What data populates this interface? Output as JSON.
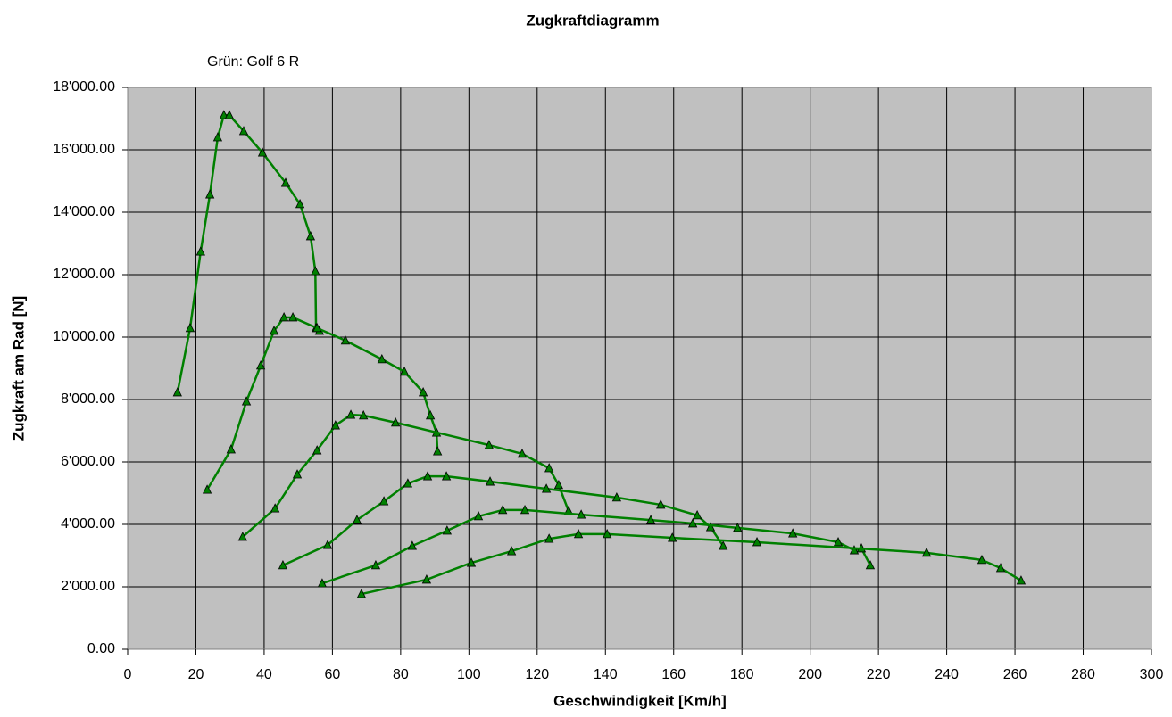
{
  "chart_data": {
    "type": "line",
    "title": "Zugkraftdiagramm",
    "annotation": "Grün: Golf 6 R",
    "xlabel": "Geschwindigkeit [Km/h]",
    "ylabel": "Zugkraft am Rad [N]",
    "xlim": [
      0,
      300
    ],
    "ylim": [
      0,
      18000
    ],
    "xticks": [
      0,
      20,
      40,
      60,
      80,
      100,
      120,
      140,
      160,
      180,
      200,
      220,
      240,
      260,
      280,
      300
    ],
    "yticks": [
      {
        "value": 0,
        "label": "0.00"
      },
      {
        "value": 2000,
        "label": "2'000.00"
      },
      {
        "value": 4000,
        "label": "4'000.00"
      },
      {
        "value": 6000,
        "label": "6'000.00"
      },
      {
        "value": 8000,
        "label": "8'000.00"
      },
      {
        "value": 10000,
        "label": "10'000.00"
      },
      {
        "value": 12000,
        "label": "12'000.00"
      },
      {
        "value": 14000,
        "label": "14'000.00"
      },
      {
        "value": 16000,
        "label": "16'000.00"
      },
      {
        "value": 18000,
        "label": "18'000.00"
      }
    ],
    "grid": true,
    "marker": "triangle",
    "series": [
      {
        "color": "#008000",
        "x": [
          14.6,
          18.3,
          21.4,
          24.1,
          26.4,
          28.2,
          29.8,
          34.0,
          39.5,
          46.3,
          50.5,
          53.6,
          55.0,
          55.2,
          56.2
        ],
        "values": [
          8230,
          10290,
          12740,
          14570,
          16400,
          17110,
          17110,
          16600,
          15910,
          14940,
          14260,
          13230,
          12110,
          10290,
          10200
        ]
      },
      {
        "color": "#008000",
        "x": [
          23.3,
          30.3,
          34.8,
          39.0,
          42.9,
          45.8,
          48.4,
          55.5,
          63.8,
          74.5,
          81.1,
          86.6,
          88.7,
          90.5,
          90.8
        ],
        "values": [
          5110,
          6400,
          7940,
          9090,
          10200,
          10630,
          10630,
          10290,
          9890,
          9290,
          8890,
          8230,
          7490,
          6940,
          6340
        ]
      },
      {
        "color": "#008000",
        "x": [
          33.7,
          43.2,
          49.7,
          55.5,
          60.9,
          65.4,
          69.1,
          78.5,
          105.9,
          115.6,
          123.5,
          126.3,
          129.2
        ],
        "values": [
          3600,
          4510,
          5600,
          6370,
          7170,
          7510,
          7490,
          7260,
          6540,
          6260,
          5800,
          5260,
          4430
        ]
      },
      {
        "color": "#008000",
        "x": [
          45.5,
          58.6,
          67.2,
          75.1,
          82.1,
          87.9,
          93.4,
          106.2,
          122.7,
          143.3,
          156.2,
          166.9,
          170.8,
          174.5
        ],
        "values": [
          2690,
          3340,
          4140,
          4740,
          5310,
          5540,
          5540,
          5370,
          5140,
          4860,
          4630,
          4290,
          3910,
          3310
        ]
      },
      {
        "color": "#008000",
        "x": [
          57.0,
          72.7,
          83.4,
          93.6,
          102.8,
          109.9,
          116.4,
          132.9,
          153.3,
          165.6,
          178.7,
          194.9,
          208.2,
          212.9,
          215.0,
          217.6
        ],
        "values": [
          2110,
          2690,
          3310,
          3800,
          4260,
          4460,
          4460,
          4310,
          4140,
          4030,
          3890,
          3710,
          3430,
          3170,
          3230,
          2690
        ]
      },
      {
        "color": "#008000",
        "x": [
          68.5,
          87.6,
          100.7,
          112.5,
          123.5,
          132.1,
          140.5,
          159.6,
          184.4,
          234.1,
          250.3,
          255.8,
          261.8
        ],
        "values": [
          1770,
          2230,
          2770,
          3140,
          3540,
          3690,
          3690,
          3570,
          3430,
          3090,
          2860,
          2600,
          2200
        ]
      }
    ]
  }
}
